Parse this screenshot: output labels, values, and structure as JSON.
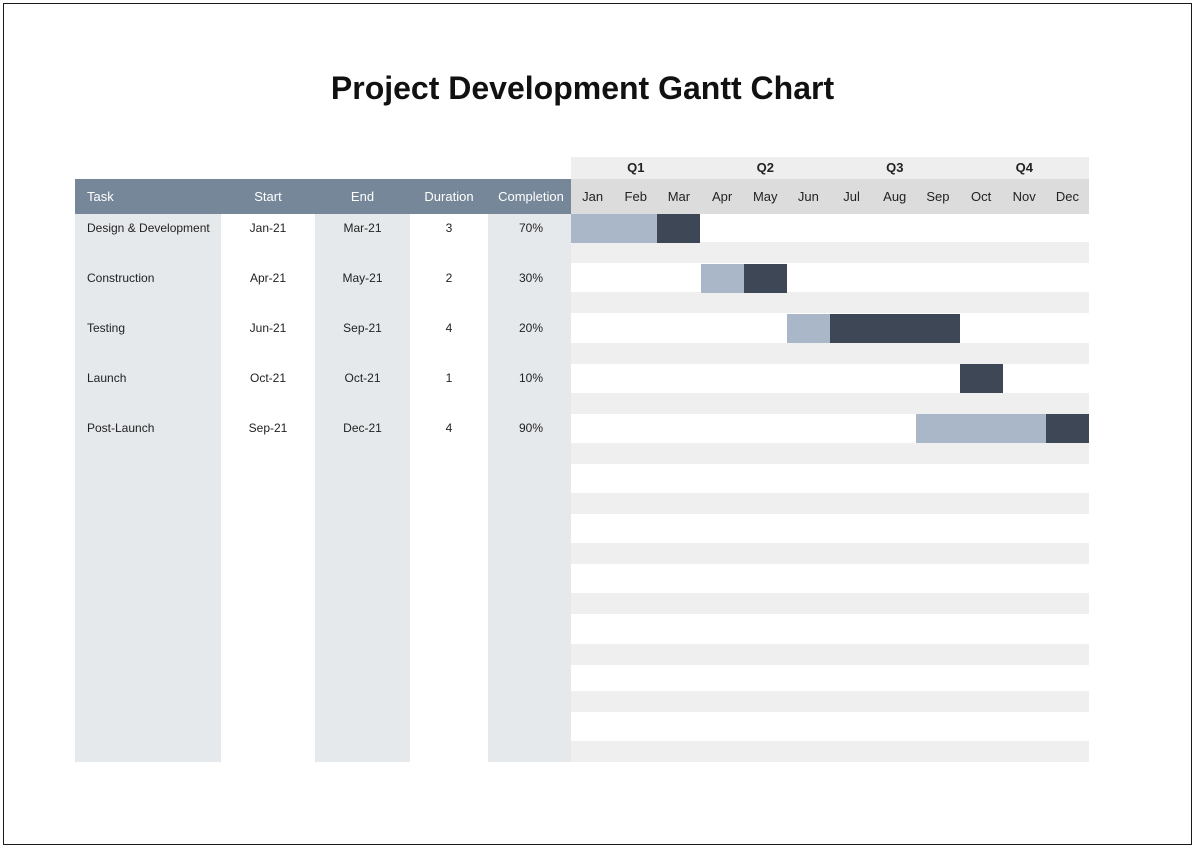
{
  "title": "Project Development Gantt Chart",
  "colors": {
    "header": "#76879a",
    "column_shade": "#e6e9ec",
    "bar_plan": "#aab7c8",
    "bar_done": "#3e4756",
    "stripe": "#efefef"
  },
  "table": {
    "headers": {
      "task": "Task",
      "start": "Start",
      "end": "End",
      "duration": "Duration",
      "completion": "Completion"
    },
    "rows": [
      {
        "task": "Design & Development",
        "start": "Jan-21",
        "end": "Mar-21",
        "duration": "3",
        "completion": "70%"
      },
      {
        "task": "Construction",
        "start": "Apr-21",
        "end": "May-21",
        "duration": "2",
        "completion": "30%"
      },
      {
        "task": "Testing",
        "start": "Jun-21",
        "end": "Sep-21",
        "duration": "4",
        "completion": "20%"
      },
      {
        "task": "Launch",
        "start": "Oct-21",
        "end": "Oct-21",
        "duration": "1",
        "completion": "10%"
      },
      {
        "task": "Post-Launch",
        "start": "Sep-21",
        "end": "Dec-21",
        "duration": "4",
        "completion": "90%"
      }
    ]
  },
  "timeline": {
    "quarters": [
      "Q1",
      "Q2",
      "Q3",
      "Q4"
    ],
    "months": [
      "Jan",
      "Feb",
      "Mar",
      "Apr",
      "May",
      "Jun",
      "Jul",
      "Aug",
      "Sep",
      "Oct",
      "Nov",
      "Dec"
    ]
  },
  "chart_data": {
    "type": "gantt",
    "tasks": [
      {
        "name": "Design & Development",
        "start_month": "Jan",
        "end_month": "Mar",
        "duration_months": 3,
        "segments": [
          {
            "kind": "light",
            "months": [
              "Jan",
              "Feb"
            ]
          },
          {
            "kind": "dark",
            "months": [
              "Mar"
            ]
          }
        ]
      },
      {
        "name": "Construction",
        "start_month": "Apr",
        "end_month": "May",
        "duration_months": 2,
        "segments": [
          {
            "kind": "light",
            "months": [
              "Apr"
            ]
          },
          {
            "kind": "dark",
            "months": [
              "May"
            ]
          }
        ]
      },
      {
        "name": "Testing",
        "start_month": "Jun",
        "end_month": "Sep",
        "duration_months": 4,
        "segments": [
          {
            "kind": "light",
            "months": [
              "Jun"
            ]
          },
          {
            "kind": "dark",
            "months": [
              "Jul",
              "Aug",
              "Sep"
            ]
          }
        ]
      },
      {
        "name": "Launch",
        "start_month": "Oct",
        "end_month": "Oct",
        "duration_months": 1,
        "segments": [
          {
            "kind": "dark",
            "months": [
              "Oct"
            ]
          }
        ]
      },
      {
        "name": "Post-Launch",
        "start_month": "Sep",
        "end_month": "Dec",
        "duration_months": 4,
        "segments": [
          {
            "kind": "light",
            "months": [
              "Sep",
              "Oct",
              "Nov"
            ]
          },
          {
            "kind": "dark",
            "months": [
              "Dec"
            ]
          }
        ]
      }
    ]
  }
}
